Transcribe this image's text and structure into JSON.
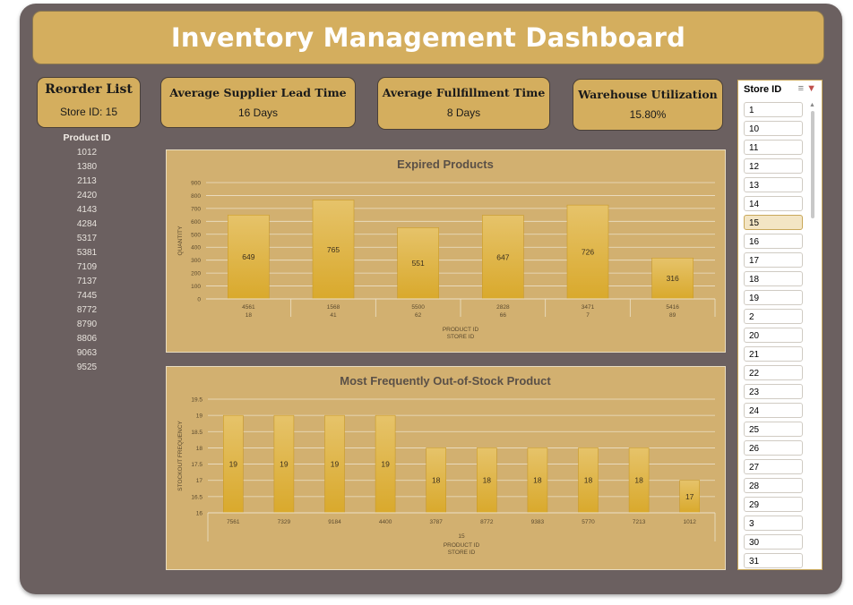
{
  "dashboard": {
    "title": "Inventory Management Dashboard"
  },
  "kpis": {
    "reorder": {
      "title": "Reorder List",
      "value": "Store ID: 15"
    },
    "lead_time": {
      "title": "Average Supplier Lead Time",
      "value": "16 Days"
    },
    "fulfillment": {
      "title": "Average Fullfillment Time",
      "value": "8 Days"
    },
    "warehouse": {
      "title": "Warehouse Utilization",
      "value": "15.80%"
    }
  },
  "reorder_list": {
    "header": "Product ID",
    "items": [
      "1012",
      "1380",
      "2113",
      "2420",
      "4143",
      "4284",
      "5317",
      "5381",
      "7109",
      "7137",
      "7445",
      "8772",
      "8790",
      "8806",
      "9063",
      "9525"
    ]
  },
  "slicer": {
    "title": "Store ID",
    "selected": "15",
    "items": [
      "1",
      "10",
      "11",
      "12",
      "13",
      "14",
      "15",
      "16",
      "17",
      "18",
      "19",
      "2",
      "20",
      "21",
      "22",
      "23",
      "24",
      "25",
      "26",
      "27",
      "28",
      "29",
      "3",
      "30",
      "31"
    ]
  },
  "colors": {
    "background": "#6b6060",
    "panel": "#d4ae5e",
    "chart_bg": "#d2b070",
    "bar": "#dfb43f"
  },
  "chart_data": [
    {
      "type": "bar",
      "title": "Expired Products",
      "ylabel": "QUANTITY",
      "xlabel": "PRODUCT ID",
      "xlabel2": "STORE ID",
      "ylim": [
        0,
        900
      ],
      "yticks": [
        0,
        100,
        200,
        300,
        400,
        500,
        600,
        700,
        800,
        900
      ],
      "categories": [
        [
          "4561",
          "18"
        ],
        [
          "1568",
          "41"
        ],
        [
          "5500",
          "62"
        ],
        [
          "2828",
          "66"
        ],
        [
          "3471",
          "7"
        ],
        [
          "5416",
          "89"
        ]
      ],
      "values": [
        649,
        765,
        551,
        647,
        726,
        316
      ]
    },
    {
      "type": "bar",
      "title": "Most Frequently Out-of-Stock Product",
      "ylabel": "STOCKOUT FREQUENCY",
      "xlabel": "PRODUCT ID",
      "xlabel2": "STORE ID",
      "group_label": "15",
      "ylim": [
        16,
        19.5
      ],
      "yticks": [
        16,
        16.5,
        17,
        17.5,
        18,
        18.5,
        19,
        19.5
      ],
      "categories": [
        "7561",
        "7329",
        "9184",
        "4400",
        "3787",
        "8772",
        "9383",
        "5770",
        "7213",
        "1012"
      ],
      "values": [
        19,
        19,
        19,
        19,
        18,
        18,
        18,
        18,
        18,
        17
      ]
    }
  ]
}
